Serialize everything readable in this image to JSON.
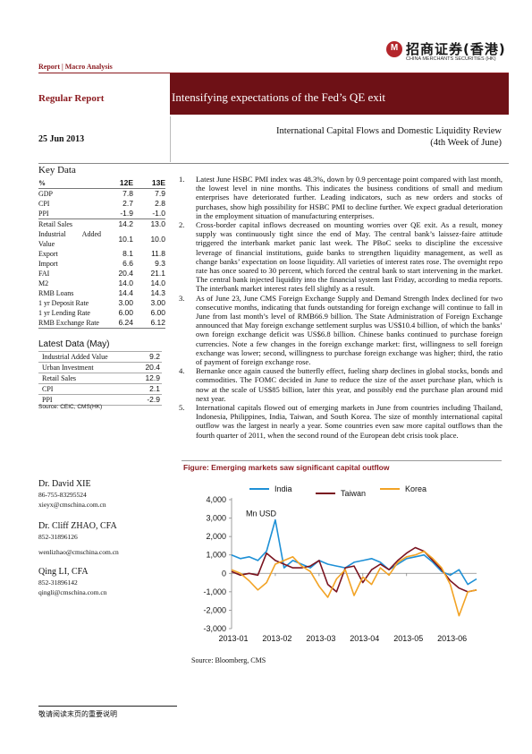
{
  "header": {
    "logo_cn": "招商证券(香港)",
    "logo_en": "CHINA MERCHANTS SECURITIES (HK)",
    "report_type": "Report | Macro Analysis"
  },
  "meta": {
    "regular_report": "Regular Report",
    "title": "Intensifying expectations of the Fed’s QE exit",
    "date": "25 Jun 2013",
    "subtitle_line1": "International Capital Flows and Domestic Liquidity Review",
    "subtitle_line2": "(4th Week of June)"
  },
  "key_data": {
    "title": "Key Data",
    "header": {
      "label": "%",
      "c1": "12E",
      "c2": "13E"
    },
    "rows": [
      {
        "label": "GDP",
        "c1": "7.8",
        "c2": "7.9"
      },
      {
        "label": "CPI",
        "c1": "2.7",
        "c2": "2.8"
      },
      {
        "label": "PPI",
        "c1": "-1.9",
        "c2": "-1.0"
      },
      {
        "label": "Retail Sales",
        "c1": "14.2",
        "c2": "13.0"
      },
      {
        "label": "Industrial Added Value",
        "c1": "10.1",
        "c2": "10.0"
      },
      {
        "label": "Export",
        "c1": "8.1",
        "c2": "11.8"
      },
      {
        "label": "Import",
        "c1": "6.6",
        "c2": "9.3"
      },
      {
        "label": "FAI",
        "c1": "20.4",
        "c2": "21.1"
      },
      {
        "label": "M2",
        "c1": "14.0",
        "c2": "14.0"
      },
      {
        "label": "RMB Loans",
        "c1": "14.4",
        "c2": "14.3"
      },
      {
        "label": "1 yr Deposit Rate",
        "c1": "3.00",
        "c2": "3.00"
      },
      {
        "label": "1 yr Lending Rate",
        "c1": "6.00",
        "c2": "6.00"
      },
      {
        "label": "RMB Exchange Rate",
        "c1": "6.24",
        "c2": "6.12"
      }
    ]
  },
  "latest_data": {
    "title": "Latest Data (May)",
    "rows": [
      {
        "label": "Industrial Added Value",
        "value": "9.2"
      },
      {
        "label": "Urban Investment",
        "value": "20.4"
      },
      {
        "label": "Retail Sales",
        "value": "12.9"
      },
      {
        "label": "CPI",
        "value": "2.1"
      },
      {
        "label": "PPI",
        "value": "-2.9"
      }
    ],
    "source": "Source: CEIC, CMS(HK)"
  },
  "analysts": [
    {
      "name": "Dr. David XIE",
      "phone": "86-755-83295524",
      "email": "xieyx@cmschina.com.cn"
    },
    {
      "name": "Dr. Cliff ZHAO, CFA",
      "phone": "852-31896126",
      "email": "wenlizhao@cmschina.com.cn"
    },
    {
      "name": "Qing LI, CFA",
      "phone": "852-31896142",
      "email": "qingli@cmschina.com.cn"
    }
  ],
  "bullets": [
    {
      "num": "1.",
      "text": "Latest June HSBC PMI index was 48.3%, down by 0.9 percentage point compared with last month, the lowest level in nine months. This indicates the business conditions of small and medium enterprises have deteriorated further. Leading indicators, such as new orders and stocks of purchases, show high possibility for HSBC PMI to decline further. We expect gradual deterioration in the employment situation of manufacturing enterprises."
    },
    {
      "num": "2.",
      "text": "Cross-border capital inflows decreased on mounting worries over QE exit. As a result, money supply was continuously tight since the end of May. The central bank’s laissez-faire attitude triggered the interbank market panic last week. The PBoC seeks to discipline the excessive leverage of financial institutions, guide banks to strengthen liquidity management, as well as change banks’ expectation on loose liquidity. All varieties of interest rates rose. The overnight repo rate has once soared to 30 percent, which forced the central bank to start intervening in the market. The central bank injected liquidity into the financial system last Friday, according to media reports. The interbank market interest rates fell slightly as a result."
    },
    {
      "num": "3.",
      "text": "As of June 23, June CMS Foreign Exchange Supply and Demand Strength Index declined for two consecutive months, indicating that funds outstanding for foreign exchange will continue to fall in June from last month’s level of RMB66.9 billion. The State Administration of Foreign Exchange announced that May foreign exchange settlement surplus was US$10.4 billion, of which the banks’ own foreign exchange deficit was US$6.8 billion. Chinese banks continued to purchase foreign currencies. Note a few changes in the foreign exchange market: first, willingness to sell foreign exchange was lower; second, willingness to purchase foreign exchange was higher; third, the ratio of payment of foreign exchange rose."
    },
    {
      "num": "4.",
      "text": "Bernanke once again caused the butterfly effect, fueling sharp declines in global stocks, bonds and commodities. The FOMC decided in June to reduce the size of the asset purchase plan, which is now at the scale of US$85 billion, later this year, and possibly end the purchase plan around mid next year."
    },
    {
      "num": "5.",
      "text": "International capitals flowed out of emerging markets in June from countries including Thailand, Indonesia, Philippines, India, Taiwan, and South Korea. The size of monthly international capital outflow was the largest in nearly a year. Some countries even saw more capital outflows than the fourth quarter of 2011, when the second round of the European debt crisis took place."
    }
  ],
  "figure": {
    "title": "Figure:   Emerging markets saw significant capital outflow",
    "source": "Source:   Bloomberg, CMS"
  },
  "chart_data": {
    "type": "line",
    "title": "",
    "ylabel": "Mn USD",
    "xlabel": "",
    "ylim": [
      -3000,
      4000
    ],
    "yticks": [
      4000,
      3000,
      2000,
      1000,
      0,
      -1000,
      -2000,
      -3000
    ],
    "ytick_labels": [
      "4,000",
      "3,000",
      "2,000",
      "1,000",
      "0",
      "-1,000",
      "-2,000",
      "-3,000"
    ],
    "xtick_labels": [
      "2013-01",
      "2013-02",
      "2013-03",
      "2013-04",
      "2013-05",
      "2013-06"
    ],
    "xtick_positions": [
      0,
      5,
      10,
      15,
      20,
      25
    ],
    "x": [
      0,
      1,
      2,
      3,
      4,
      5,
      6,
      7,
      8,
      9,
      10,
      11,
      12,
      13,
      14,
      15,
      16,
      17,
      18,
      19,
      20,
      21,
      22,
      23,
      24,
      25,
      26,
      27,
      28
    ],
    "legend_position": "top",
    "grid": false,
    "series": [
      {
        "name": "India",
        "color": "#1e90d6",
        "values": [
          1000,
          800,
          900,
          700,
          1200,
          2900,
          300,
          700,
          500,
          300,
          700,
          500,
          400,
          300,
          600,
          700,
          800,
          600,
          200,
          500,
          800,
          900,
          1000,
          600,
          100,
          -100,
          200,
          -600,
          -300
        ]
      },
      {
        "name": "Taiwan",
        "color": "#7a1420",
        "values": [
          100,
          -100,
          0,
          -100,
          1100,
          700,
          500,
          300,
          300,
          400,
          700,
          -600,
          -1000,
          300,
          400,
          -500,
          200,
          500,
          200,
          700,
          1100,
          1400,
          1200,
          700,
          200,
          -400,
          -800,
          -1000,
          -900
        ]
      },
      {
        "name": "Korea",
        "color": "#f2a325",
        "values": [
          200,
          0,
          -400,
          -900,
          -500,
          500,
          700,
          900,
          400,
          100,
          -700,
          -1300,
          -300,
          200,
          -1200,
          -200,
          -600,
          300,
          -100,
          600,
          900,
          1000,
          1200,
          800,
          300,
          -600,
          -2300,
          -1000,
          -900
        ]
      }
    ]
  },
  "footer": {
    "disclaimer": "敬请阅读末页的重要说明"
  }
}
